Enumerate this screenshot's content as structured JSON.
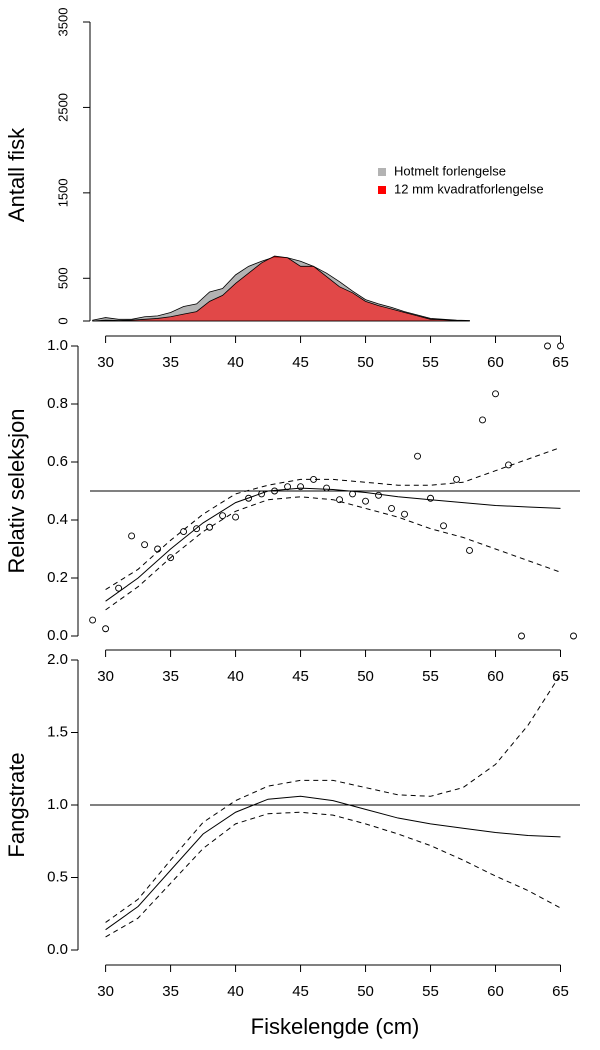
{
  "chart_data": [
    {
      "type": "area",
      "ylabel": "Antall fisk",
      "x": [
        29,
        30,
        31,
        32,
        33,
        34,
        35,
        36,
        37,
        38,
        39,
        40,
        41,
        42,
        43,
        44,
        45,
        46,
        47,
        48,
        49,
        50,
        51,
        52,
        53,
        54,
        55,
        56,
        57,
        58
      ],
      "series": [
        {
          "name": "Hotmelt forlengelse",
          "color": "#b3b3b3",
          "fill_opacity": 1,
          "values": [
            10,
            40,
            20,
            20,
            50,
            60,
            100,
            170,
            200,
            340,
            380,
            540,
            640,
            700,
            750,
            740,
            700,
            640,
            560,
            460,
            350,
            250,
            200,
            160,
            110,
            70,
            30,
            20,
            10,
            5
          ]
        },
        {
          "name": "12 mm kvadratforlengelse",
          "color": "#ff0000",
          "fill_opacity": 0.6,
          "values": [
            0,
            10,
            5,
            10,
            20,
            30,
            50,
            80,
            110,
            230,
            300,
            440,
            560,
            680,
            760,
            740,
            640,
            640,
            520,
            400,
            330,
            230,
            180,
            140,
            100,
            60,
            20,
            15,
            5,
            0
          ]
        }
      ],
      "xlim": [
        28.8,
        66.5
      ],
      "xticks": [
        30,
        35,
        40,
        45,
        50,
        55,
        60,
        65
      ],
      "ylim": [
        0,
        3500
      ],
      "yticks": [
        0,
        500,
        1500,
        2500,
        3500
      ],
      "legend": "right"
    },
    {
      "type": "scatter",
      "ylabel": "Relativ seleksjon",
      "points": {
        "x": [
          29,
          30,
          31,
          32,
          33,
          34,
          35,
          36,
          37,
          38,
          39,
          40,
          41,
          42,
          43,
          44,
          45,
          46,
          47,
          48,
          49,
          50,
          51,
          52,
          53,
          54,
          55,
          56,
          57,
          58,
          59,
          60,
          61,
          62,
          64,
          65,
          66
        ],
        "values": [
          0.055,
          0.025,
          0.165,
          0.345,
          0.315,
          0.3,
          0.27,
          0.36,
          0.37,
          0.375,
          0.415,
          0.41,
          0.475,
          0.49,
          0.5,
          0.515,
          0.515,
          0.54,
          0.51,
          0.47,
          0.49,
          0.465,
          0.485,
          0.44,
          0.42,
          0.62,
          0.475,
          0.38,
          0.54,
          0.295,
          0.745,
          0.835,
          0.59,
          0,
          1,
          1,
          0
        ]
      },
      "series": [
        {
          "style": "solid",
          "x": [
            30,
            32.5,
            35,
            37.5,
            40,
            42.5,
            45,
            47.5,
            50,
            52.5,
            55,
            57.5,
            60,
            62.5,
            65
          ],
          "values": [
            0.12,
            0.2,
            0.3,
            0.39,
            0.46,
            0.5,
            0.51,
            0.505,
            0.495,
            0.48,
            0.47,
            0.46,
            0.45,
            0.445,
            0.44
          ]
        },
        {
          "style": "dashed",
          "x": [
            30,
            32.5,
            35,
            37.5,
            40,
            42.5,
            45,
            47.5,
            50,
            52.5,
            55,
            57.5,
            60,
            62.5,
            65
          ],
          "values": [
            0.09,
            0.17,
            0.27,
            0.36,
            0.43,
            0.47,
            0.48,
            0.47,
            0.44,
            0.41,
            0.37,
            0.34,
            0.3,
            0.26,
            0.22
          ]
        },
        {
          "style": "dashed",
          "x": [
            30,
            32.5,
            35,
            37.5,
            40,
            42.5,
            45,
            47.5,
            50,
            52.5,
            55,
            57.5,
            60,
            62.5,
            65
          ],
          "values": [
            0.16,
            0.23,
            0.33,
            0.42,
            0.49,
            0.52,
            0.54,
            0.54,
            0.53,
            0.52,
            0.52,
            0.53,
            0.57,
            0.61,
            0.65
          ]
        }
      ],
      "reference_line": 0.5,
      "xlim": [
        28.8,
        66.5
      ],
      "xticks": [
        30,
        35,
        40,
        45,
        50,
        55,
        60,
        65
      ],
      "ylim": [
        0,
        1
      ],
      "yticks": [
        {
          "value": 0,
          "label": "0.0"
        },
        {
          "value": 0.2,
          "label": "0.2"
        },
        {
          "value": 0.4,
          "label": "0.4"
        },
        {
          "value": 0.6,
          "label": "0.6"
        },
        {
          "value": 0.8,
          "label": "0.8"
        },
        {
          "value": 1,
          "label": "1.0"
        }
      ]
    },
    {
      "type": "line",
      "ylabel": "Fangstrate",
      "xlabel": "Fiskelengde (cm)",
      "series": [
        {
          "style": "solid",
          "x": [
            30,
            32.5,
            35,
            37.5,
            40,
            42.5,
            45,
            47.5,
            50,
            52.5,
            55,
            57.5,
            60,
            62.5,
            65
          ],
          "values": [
            0.14,
            0.3,
            0.55,
            0.8,
            0.95,
            1.04,
            1.06,
            1.03,
            0.97,
            0.91,
            0.87,
            0.84,
            0.81,
            0.79,
            0.78
          ]
        },
        {
          "style": "dashed",
          "x": [
            30,
            32.5,
            35,
            37.5,
            40,
            42.5,
            45,
            47.5,
            50,
            52.5,
            55,
            57.5,
            60,
            62.5,
            65
          ],
          "values": [
            0.09,
            0.22,
            0.46,
            0.7,
            0.87,
            0.94,
            0.95,
            0.93,
            0.87,
            0.8,
            0.72,
            0.62,
            0.51,
            0.41,
            0.29
          ]
        },
        {
          "style": "dashed",
          "x": [
            30,
            32.5,
            35,
            37.5,
            40,
            42.5,
            45,
            47.5,
            50,
            52.5,
            55,
            57.5,
            60,
            62.5,
            65
          ],
          "values": [
            0.19,
            0.35,
            0.62,
            0.88,
            1.03,
            1.13,
            1.17,
            1.17,
            1.12,
            1.07,
            1.06,
            1.12,
            1.28,
            1.55,
            1.9
          ]
        }
      ],
      "reference_line": 1,
      "xlim": [
        28.8,
        66.5
      ],
      "xticks": [
        30,
        35,
        40,
        45,
        50,
        55,
        60,
        65
      ],
      "ylim": [
        0,
        2
      ],
      "yticks": [
        {
          "value": 0,
          "label": "0.0"
        },
        {
          "value": 0.5,
          "label": "0.5"
        },
        {
          "value": 1,
          "label": "1.0"
        },
        {
          "value": 1.5,
          "label": "1.5"
        },
        {
          "value": 2,
          "label": "2.0"
        }
      ]
    }
  ]
}
